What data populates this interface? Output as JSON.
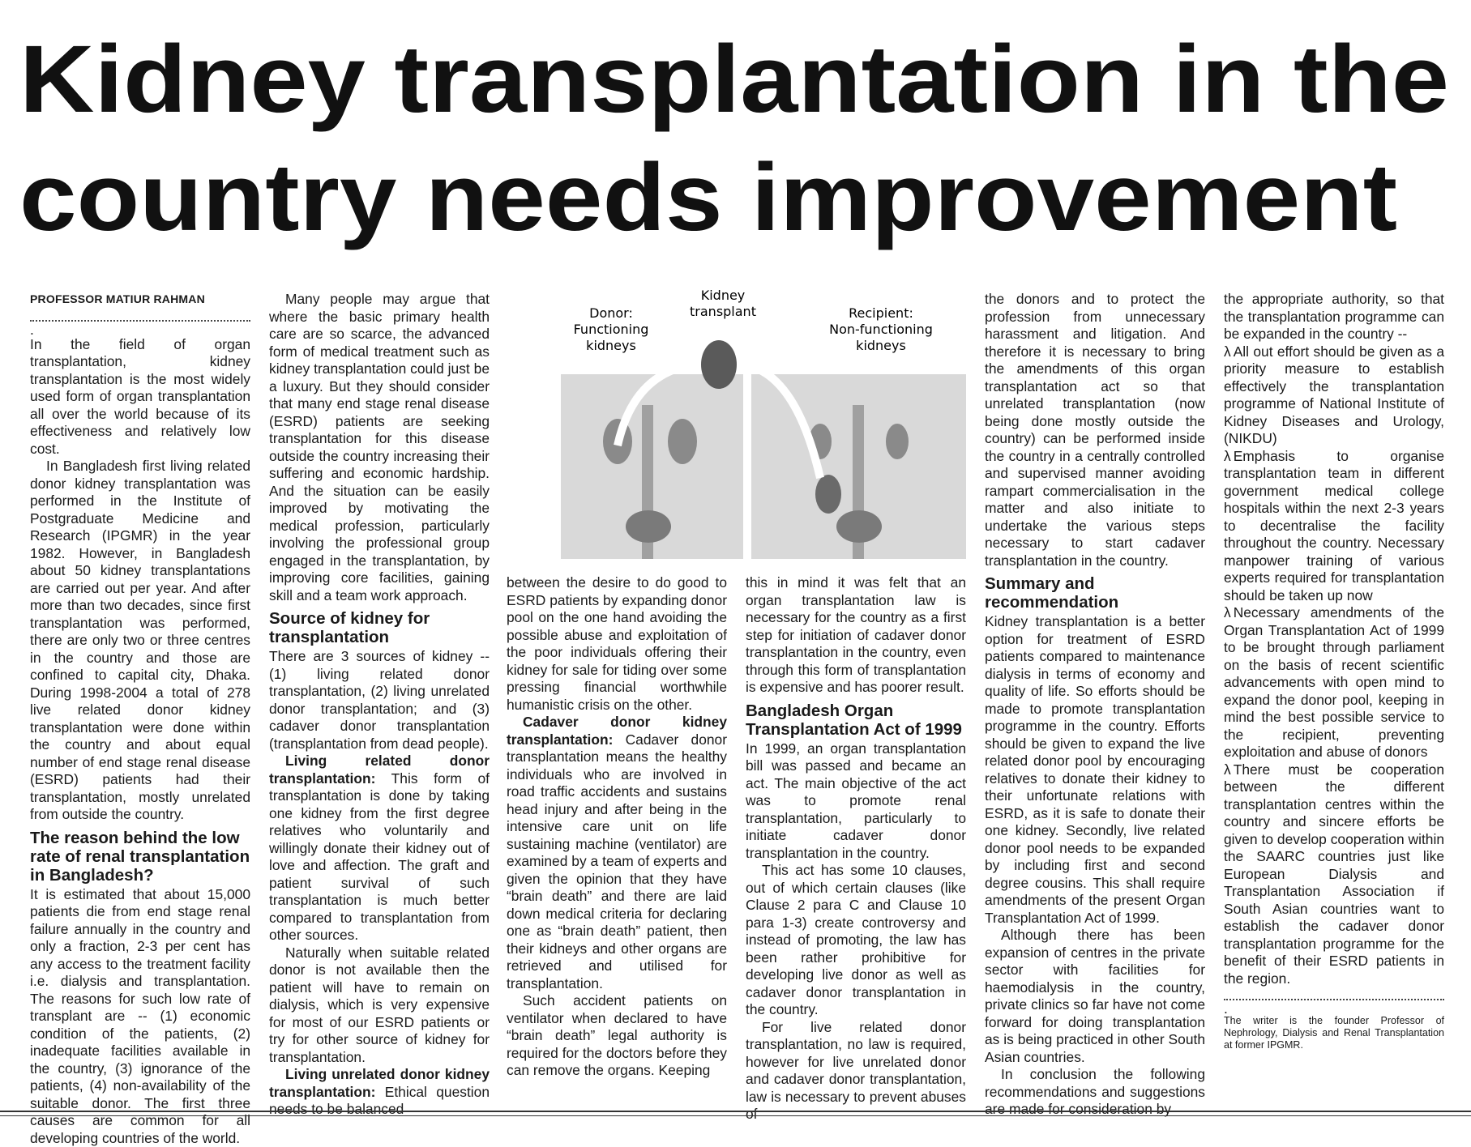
{
  "headline": {
    "line1": "Kidney transplantation in the",
    "line2": "country needs improvement"
  },
  "byline": "PROFESSOR MATIUR RAHMAN",
  "illustration": {
    "donor_label": "Donor: Functioning kidneys",
    "transplant_label": "Kidney transplant",
    "recipient_label": "Recipient: Non-functioning kidneys"
  },
  "columns": [
    {
      "blocks": [
        {
          "type": "byline"
        },
        {
          "type": "dots",
          "text": "."
        },
        {
          "type": "p",
          "text": "In the field of organ transplantation, kidney transplantation is the most widely used form of organ transplantation all over the world because of its effectiveness and relatively low cost."
        },
        {
          "type": "pi",
          "text": "In Bangladesh first living related donor kidney transplantation was performed in the Institute of Postgraduate Medicine and Research (IPGMR) in the year 1982. However, in Bangladesh about 50 kidney transplantations are carried out per year. And after more than two decades, since first transplantation was performed, there are only two or three centres in the country and those are confined to capital city, Dhaka. During 1998-2004 a total of 278 live related donor kidney transplantation were done within the country and about equal number of end stage renal disease (ESRD) patients had their transplantation, mostly unrelated from outside the country."
        },
        {
          "type": "h",
          "text": "The reason behind the low rate of renal transplantation in Bangladesh?"
        },
        {
          "type": "p",
          "text": "It is estimated that about 15,000 patients die from end stage renal failure annually in the country and only a fraction, 2-3 per cent has any access to the treatment facility i.e. dialysis and transplantation. The reasons for such low rate of transplant are -- (1) economic condition of the patients, (2) inadequate facilities available in the country, (3) ignorance of the patients, (4) non-availability of the suitable donor. The first three causes are common for all developing countries of the world."
        }
      ]
    },
    {
      "blocks": [
        {
          "type": "pi",
          "text": "Many people may argue that where the basic primary health care are so scarce, the advanced form of medical treatment such as kidney transplantation could just be a luxury. But they should consider that many end stage renal disease (ESRD) patients are seeking transplantation for this disease outside the country increasing their suffering and economic hardship. And the situation can be easily improved by motivating the medical profession, particularly involving the professional group engaged in the transplantation, by improving core facilities, gaining skill and a team work approach."
        },
        {
          "type": "h",
          "text": "Source of kidney for transplantation"
        },
        {
          "type": "p",
          "text": "There are 3 sources of kidney -- (1) living related donor transplantation, (2) living unrelated donor transplantation; and (3) cadaver donor transplantation (transplantation from dead people)."
        },
        {
          "type": "pi",
          "lead": "Living related donor transplantation:",
          "text": " This form of transplantation is done by taking one kidney from the first degree relatives who voluntarily and willingly donate their kidney out of love and affection. The graft and patient survival of such transplantation is much better compared to transplantation from other sources."
        },
        {
          "type": "pi",
          "text": "Naturally when suitable related donor is not available then the patient will have to remain on dialysis, which is very expensive for most of our ESRD patients or try for other source of kidney for transplantation."
        },
        {
          "type": "pi",
          "lead": "Living unrelated donor kidney transplantation:",
          "text": " Ethical question needs to be balanced"
        }
      ]
    },
    {
      "blocks": [
        {
          "type": "p",
          "text": "between the desire to do good to ESRD patients by expanding donor pool on the one hand avoiding the possible abuse and exploitation of the poor individuals offering their kidney for sale for tiding over some pressing financial worthwhile humanistic crisis on the other."
        },
        {
          "type": "pi",
          "lead": "Cadaver donor kidney transplantation:",
          "text": " Cadaver donor transplantation means the healthy individuals who are involved in road traffic accidents and sustains head injury and after being in the intensive care unit on life sustaining machine (ventilator) are examined by a team of experts and given the opinion that they have “brain death” and there are laid down medical criteria for declaring one as “brain death” patient, then their kidneys and other organs are retrieved and utilised for transplantation."
        },
        {
          "type": "pi",
          "text": "Such accident patients on ventilator when declared to have “brain death” legal authority is required for the doctors before they can remove the organs. Keeping"
        }
      ]
    },
    {
      "blocks": [
        {
          "type": "p",
          "text": "this in mind it was felt that an organ transplantation law is necessary for the country as a first step for initiation of cadaver donor transplantation in the country, even through this form of transplantation is expensive and has poorer result."
        },
        {
          "type": "h",
          "text": "Bangladesh Organ Transplantation Act of 1999"
        },
        {
          "type": "p",
          "text": "In 1999, an organ transplantation bill was passed and became an act. The main objective of the act was to promote renal transplantation, particularly to initiate cadaver donor transplantation in the country."
        },
        {
          "type": "pi",
          "text": "This act has some 10 clauses, out of which certain clauses (like Clause 2 para C and Clause 10 para 1-3) create controversy and instead of promoting, the law has been rather prohibitive for developing live donor as well as cadaver donor transplantation in the country."
        },
        {
          "type": "pi",
          "text": "For live related donor transplantation, no law is required, however for live unrelated donor and cadaver donor transplantation, law is necessary to prevent abuses of"
        }
      ]
    },
    {
      "blocks": [
        {
          "type": "p",
          "text": "the donors and to protect the profession from unnecessary harassment and litigation. And therefore it is necessary to bring the amendments of this organ transplantation act so that unrelated transplantation (now being done mostly outside the country) can be performed inside the country in a centrally controlled and supervised manner avoiding rampart commercialisation in the matter and also initiate to undertake the various steps necessary to start cadaver transplantation in the country."
        },
        {
          "type": "h",
          "text": "Summary and recommendation"
        },
        {
          "type": "p",
          "text": "Kidney transplantation is a better option for treatment of ESRD patients compared to maintenance dialysis in terms of economy and quality of life. So efforts should be made to promote transplantation programme in the country. Efforts should be given to expand the live related donor pool by encouraging relatives to donate their kidney to their unfortunate relations with ESRD, as it is safe to donate their one kidney. Secondly, live related donor pool needs to be expanded by including first and second degree cousins. This shall require amendments of the present Organ Transplantation Act of 1999."
        },
        {
          "type": "pi",
          "text": "Although there has been expansion of centres in the private sector with facilities for haemodialysis in the country, private clinics so far have not come forward for doing transplantation as is being practiced in other South Asian countries."
        },
        {
          "type": "pi",
          "text": "In conclusion the following recommendations and suggestions are made for consideration by"
        }
      ]
    },
    {
      "blocks": [
        {
          "type": "p",
          "text": "the appropriate authority, so that the transplantation programme can be expanded in the country --"
        },
        {
          "type": "b",
          "sym": "λ",
          "text": "All out effort should be given as a priority measure to establish effectively the transplantation programme of National Institute of Kidney Diseases and Urology, (NIKDU)"
        },
        {
          "type": "b",
          "sym": "λ",
          "text": "Emphasis to organise transplantation team in different government medical college hospitals within the next 2-3 years to decentralise the facility throughout the country. Necessary manpower training of various experts required for transplantation should be taken up now"
        },
        {
          "type": "b",
          "sym": "λ",
          "text": "Necessary amendments of the Organ Transplantation Act of 1999 to be brought through parliament on the basis of recent scientific advancements with open mind to expand the donor pool, keeping in mind the best possible service to the recipient, preventing exploitation and abuse of donors"
        },
        {
          "type": "b",
          "sym": "λ",
          "text": "There must be cooperation between the different transplantation centres within the country and sincere efforts be given to develop cooperation within the SAARC countries just like European Dialysis and Transplantation Association if South Asian countries want to establish the cadaver donor transplantation programme for the benefit of their ESRD patients in the region."
        },
        {
          "type": "dots",
          "text": "."
        },
        {
          "type": "foot",
          "text": "The writer is the founder Professor of Nephrology, Dialysis and Renal Transplantation at former IPGMR."
        }
      ]
    }
  ]
}
